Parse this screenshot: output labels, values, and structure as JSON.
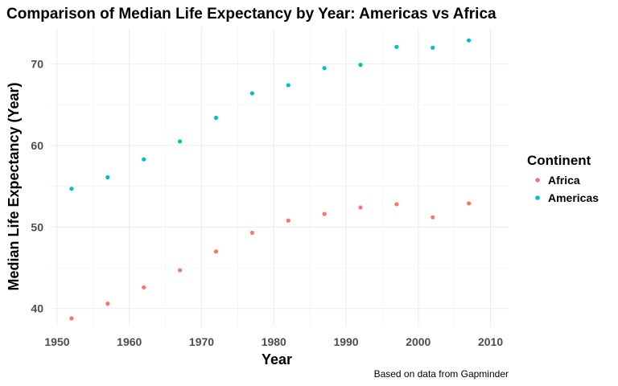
{
  "chart_data": {
    "type": "scatter",
    "title": "Comparison of Median Life Expectancy by Year: Americas vs Africa",
    "xlabel": "Year",
    "ylabel": "Median Life Expectancy (Year)",
    "caption": "Based on data from Gapminder",
    "xlim": [
      1949,
      2012.5
    ],
    "ylim": [
      37.8,
      74.4
    ],
    "xticks": [
      1950,
      1960,
      1970,
      1980,
      1990,
      2000,
      2010
    ],
    "yticks": [
      40,
      50,
      60,
      70
    ],
    "grid": true,
    "legend": {
      "title": "Continent",
      "placement": "right"
    },
    "series": [
      {
        "name": "Africa",
        "color": "#F8766D",
        "x": [
          1952,
          1957,
          1962,
          1967,
          1972,
          1977,
          1982,
          1987,
          1992,
          1997,
          2002,
          2007
        ],
        "y": [
          38.8,
          40.6,
          42.6,
          44.7,
          47.0,
          49.3,
          50.8,
          51.6,
          52.4,
          52.8,
          51.2,
          52.9
        ]
      },
      {
        "name": "Americas",
        "color": "#00BFC4",
        "x": [
          1952,
          1957,
          1962,
          1967,
          1972,
          1977,
          1982,
          1987,
          1992,
          1997,
          2002,
          2007
        ],
        "y": [
          54.7,
          56.1,
          58.3,
          60.5,
          63.4,
          66.4,
          67.4,
          69.5,
          69.9,
          72.1,
          72.0,
          72.9
        ]
      }
    ]
  }
}
